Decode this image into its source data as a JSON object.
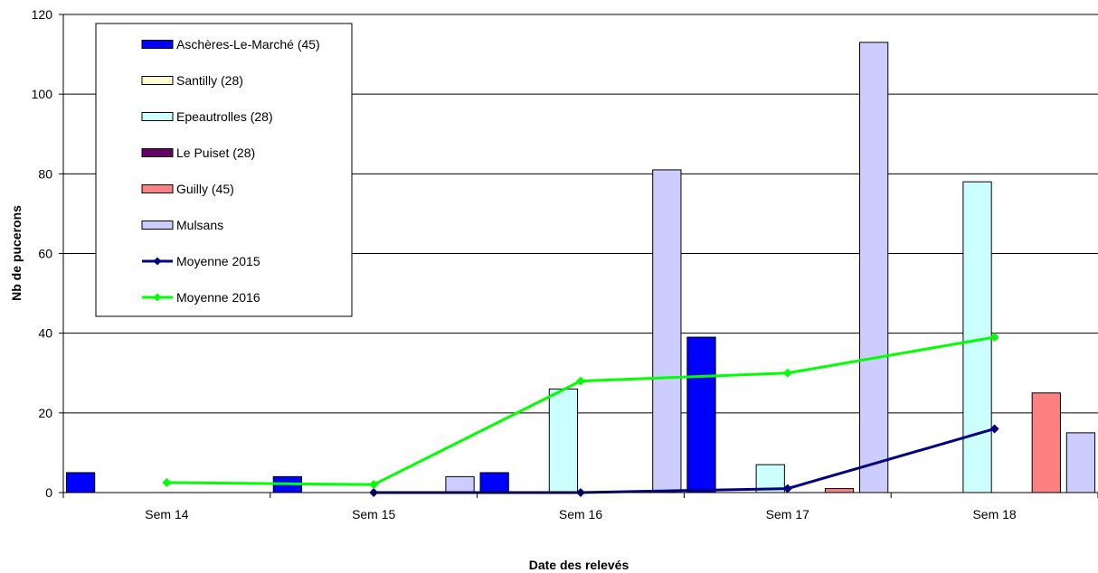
{
  "chart_data": {
    "type": "bar",
    "title": "",
    "xlabel": "Date des relevés",
    "ylabel": "Nb de pucerons",
    "categories": [
      "Sem 14",
      "Sem 15",
      "Sem 16",
      "Sem 17",
      "Sem 18"
    ],
    "ylim": [
      0,
      120
    ],
    "yticks": [
      0,
      20,
      40,
      60,
      80,
      100,
      120
    ],
    "grid": true,
    "legend_position": "top-left",
    "series": [
      {
        "name": "Aschères-Le-Marché (45)",
        "kind": "bar",
        "color": "#0000ff",
        "values": [
          5,
          4,
          5,
          39,
          null
        ]
      },
      {
        "name": "Santilly (28)",
        "kind": "bar",
        "color": "#ffffcc",
        "values": [
          null,
          null,
          null,
          null,
          null
        ]
      },
      {
        "name": "Epeautrolles (28)",
        "kind": "bar",
        "color": "#ccffff",
        "values": [
          null,
          null,
          26,
          7,
          78
        ]
      },
      {
        "name": "Le Puiset (28)",
        "kind": "bar",
        "color": "#660066",
        "values": [
          null,
          null,
          null,
          null,
          null
        ]
      },
      {
        "name": "Guilly (45)",
        "kind": "bar",
        "color": "#ff8080",
        "values": [
          null,
          null,
          null,
          1,
          25
        ]
      },
      {
        "name": "Mulsans",
        "kind": "bar",
        "color": "#ccccff",
        "values": [
          null,
          4,
          81,
          113,
          15
        ]
      },
      {
        "name": "Moyenne 2015",
        "kind": "line",
        "color": "#000080",
        "values": [
          null,
          0,
          0,
          1,
          16
        ]
      },
      {
        "name": "Moyenne 2016",
        "kind": "line",
        "color": "#00ff00",
        "values": [
          2.5,
          2,
          28,
          30,
          39
        ]
      }
    ]
  }
}
